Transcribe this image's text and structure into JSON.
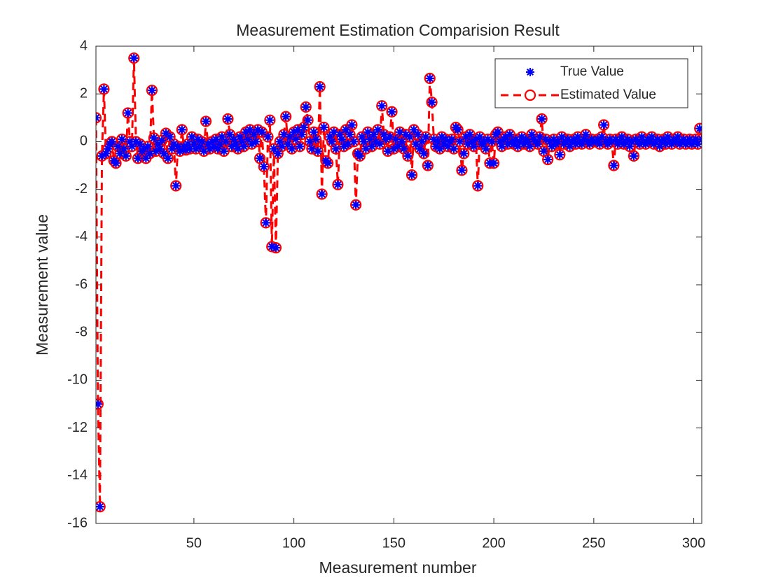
{
  "chart_data": {
    "type": "line",
    "title": "Measurement Estimation Comparision Result",
    "xlabel": "Measurement number",
    "ylabel": "Measurement value",
    "legend": "northeast",
    "xlim": [
      1,
      304
    ],
    "xticks": [
      50,
      100,
      150,
      200,
      250,
      300
    ],
    "ylim": [
      -16,
      4
    ],
    "yticks": [
      -16,
      -14,
      -12,
      -10,
      -8,
      -6,
      -4,
      -2,
      0,
      2,
      4
    ],
    "x": [
      1,
      2,
      3,
      4,
      5,
      6,
      7,
      8,
      9,
      10,
      11,
      12,
      13,
      14,
      15,
      16,
      17,
      18,
      19,
      20,
      21,
      22,
      23,
      24,
      25,
      26,
      27,
      28,
      29,
      30,
      31,
      32,
      33,
      34,
      35,
      36,
      37,
      38,
      39,
      40,
      41,
      42,
      43,
      44,
      45,
      46,
      47,
      48,
      49,
      50,
      51,
      52,
      53,
      54,
      55,
      56,
      57,
      58,
      59,
      60,
      61,
      62,
      63,
      64,
      65,
      66,
      67,
      68,
      69,
      70,
      71,
      72,
      73,
      74,
      75,
      76,
      77,
      78,
      79,
      80,
      81,
      82,
      83,
      84,
      85,
      86,
      87,
      88,
      89,
      90,
      91,
      92,
      93,
      94,
      95,
      96,
      97,
      98,
      99,
      100,
      101,
      102,
      103,
      104,
      105,
      106,
      107,
      108,
      109,
      110,
      111,
      112,
      113,
      114,
      115,
      116,
      117,
      118,
      119,
      120,
      121,
      122,
      123,
      124,
      125,
      126,
      127,
      128,
      129,
      130,
      131,
      132,
      133,
      134,
      135,
      136,
      137,
      138,
      139,
      140,
      141,
      142,
      143,
      144,
      145,
      146,
      147,
      148,
      149,
      150,
      151,
      152,
      153,
      154,
      155,
      156,
      157,
      158,
      159,
      160,
      161,
      162,
      163,
      164,
      165,
      166,
      167,
      168,
      169,
      170,
      171,
      172,
      173,
      174,
      175,
      176,
      177,
      178,
      179,
      180,
      181,
      182,
      183,
      184,
      185,
      186,
      187,
      188,
      189,
      190,
      191,
      192,
      193,
      194,
      195,
      196,
      197,
      198,
      199,
      200,
      201,
      202,
      203,
      204,
      205,
      206,
      207,
      208,
      209,
      210,
      211,
      212,
      213,
      214,
      215,
      216,
      217,
      218,
      219,
      220,
      221,
      222,
      223,
      224,
      225,
      226,
      227,
      228,
      229,
      230,
      231,
      232,
      233,
      234,
      235,
      236,
      237,
      238,
      239,
      240,
      241,
      242,
      243,
      244,
      245,
      246,
      247,
      248,
      249,
      250,
      251,
      252,
      253,
      254,
      255,
      256,
      257,
      258,
      259,
      260,
      261,
      262,
      263,
      264,
      265,
      266,
      267,
      268,
      269,
      270,
      271,
      272,
      273,
      274,
      275,
      276,
      277,
      278,
      279,
      280,
      281,
      282,
      283,
      284,
      285,
      286,
      287,
      288,
      289,
      290,
      291,
      292,
      293,
      294,
      295,
      296,
      297,
      298,
      299,
      300,
      301,
      302,
      303,
      304
    ],
    "series": [
      {
        "name": "True Value",
        "color": "#0000ff",
        "marker": "asterisk",
        "line": "none",
        "values": [
          1.0,
          -11.0,
          -15.3,
          -0.6,
          2.2,
          -0.5,
          -0.3,
          -0.1,
          0.0,
          -0.8,
          -0.9,
          -0.2,
          -0.5,
          0.1,
          -0.3,
          -0.6,
          1.2,
          0.0,
          -0.2,
          3.5,
          0.0,
          -0.7,
          -0.1,
          -0.4,
          -0.3,
          -0.7,
          -0.2,
          -0.5,
          2.15,
          0.15,
          -0.4,
          -0.1,
          -0.3,
          0.05,
          -0.5,
          0.35,
          -0.7,
          0.2,
          -0.3,
          -0.1,
          -1.85,
          -0.2,
          -0.4,
          0.5,
          -0.2,
          -0.35,
          -0.1,
          -0.3,
          0.2,
          -0.1,
          -0.3,
          0.1,
          -0.2,
          0.0,
          -0.4,
          0.85,
          -0.1,
          -0.3,
          0.0,
          -0.2,
          0.1,
          -0.3,
          -0.1,
          0.2,
          -0.4,
          0.0,
          0.95,
          0.3,
          -0.2,
          0.1,
          -0.1,
          -0.3,
          0.2,
          0.0,
          -0.2,
          0.4,
          0.1,
          0.5,
          -0.1,
          0.3,
          0.0,
          0.5,
          -0.7,
          0.4,
          -1.05,
          -3.4,
          0.2,
          0.9,
          -4.4,
          -0.3,
          -4.45,
          -0.5,
          0.0,
          -0.2,
          0.3,
          1.05,
          -0.1,
          0.2,
          -0.3,
          0.4,
          0.1,
          0.5,
          -0.2,
          0.3,
          0.6,
          1.45,
          0.9,
          0.0,
          -0.3,
          0.4,
          0.1,
          -0.4,
          2.3,
          -2.2,
          0.6,
          -0.8,
          -0.9,
          0.2,
          0.0,
          0.4,
          -0.3,
          -1.8,
          0.3,
          0.1,
          -0.2,
          0.5,
          -0.1,
          0.3,
          0.7,
          0.0,
          -2.65,
          -0.5,
          -0.6,
          0.2,
          0.0,
          -0.3,
          0.4,
          0.1,
          -0.2,
          0.3,
          0.0,
          0.5,
          -0.1,
          1.5,
          0.3,
          0.1,
          -0.4,
          0.2,
          1.25,
          -0.3,
          0.1,
          -0.2,
          0.4,
          0.0,
          -0.3,
          0.3,
          -0.6,
          0.2,
          -1.4,
          0.5,
          -0.1,
          0.3,
          -0.3,
          0.0,
          -0.5,
          0.2,
          -1.0,
          2.65,
          1.65,
          0.1,
          -0.2,
          0.0,
          -0.3,
          0.2,
          -0.1,
          0.1,
          -0.2,
          0.0,
          0.1,
          -0.3,
          0.6,
          0.5,
          0.0,
          -1.2,
          -0.5,
          0.2,
          -0.1,
          0.3,
          0.0,
          -0.2,
          0.1,
          -1.85,
          0.2,
          -0.1,
          0.0,
          -0.3,
          0.1,
          -0.9,
          0.0,
          -0.9,
          0.3,
          0.4,
          0.0,
          -0.2,
          0.1,
          0.2,
          -0.1,
          0.3,
          0.0,
          -0.1,
          0.1,
          -0.2,
          0.0,
          0.2,
          -0.1,
          0.1,
          0.0,
          -0.2,
          0.3,
          0.1,
          0.0,
          -0.1,
          0.2,
          0.95,
          -0.4,
          0.1,
          -0.75,
          0.0,
          -0.2,
          0.1,
          -0.1,
          0.0,
          -0.55,
          0.2,
          -0.1,
          0.0,
          0.1,
          -0.2,
          0.0,
          0.1,
          -0.1,
          0.2,
          0.0,
          -0.1,
          0.1,
          0.3,
          0.0,
          -0.1,
          0.1,
          0.0,
          0.0,
          0.1,
          -0.1,
          0.2,
          0.7,
          0.0,
          -0.1,
          0.1,
          0.0,
          -1.0,
          0.1,
          -0.1,
          0.0,
          0.2,
          -0.1,
          0.0,
          0.1,
          -0.2,
          0.0,
          -0.6,
          0.1,
          0.0,
          -0.1,
          0.2,
          0.0,
          -0.1,
          0.1,
          0.0,
          0.2,
          -0.1,
          0.0,
          0.1,
          -0.2,
          0.0,
          0.1,
          -0.1,
          0.2,
          0.0,
          -0.1,
          0.1,
          0.0,
          0.2,
          -0.1,
          0.0,
          0.1,
          -0.1,
          0.0,
          0.1,
          -0.1,
          0.0,
          0.1,
          -0.1,
          0.55,
          0.1
        ]
      },
      {
        "name": "Estimated Value",
        "color": "#ff0000",
        "marker": "circle",
        "line": "dashed",
        "values": [
          1.0,
          -11.0,
          -15.3,
          -0.6,
          2.2,
          -0.5,
          -0.3,
          -0.1,
          0.0,
          -0.8,
          -0.9,
          -0.2,
          -0.5,
          0.1,
          -0.3,
          -0.6,
          1.2,
          0.0,
          -0.2,
          3.5,
          0.0,
          -0.7,
          -0.1,
          -0.4,
          -0.3,
          -0.7,
          -0.2,
          -0.5,
          2.15,
          0.15,
          -0.4,
          -0.1,
          -0.3,
          0.05,
          -0.5,
          0.35,
          -0.7,
          0.2,
          -0.3,
          -0.1,
          -1.85,
          -0.2,
          -0.4,
          0.5,
          -0.2,
          -0.35,
          -0.1,
          -0.3,
          0.2,
          -0.1,
          -0.3,
          0.1,
          -0.2,
          0.0,
          -0.4,
          0.85,
          -0.1,
          -0.3,
          0.0,
          -0.2,
          0.1,
          -0.3,
          -0.1,
          0.2,
          -0.4,
          0.0,
          0.95,
          0.3,
          -0.2,
          0.1,
          -0.1,
          -0.3,
          0.2,
          0.0,
          -0.2,
          0.4,
          0.1,
          0.5,
          -0.1,
          0.3,
          0.0,
          0.5,
          -0.7,
          0.4,
          -1.05,
          -3.4,
          0.2,
          0.9,
          -4.4,
          -0.3,
          -4.45,
          -0.5,
          0.0,
          -0.2,
          0.3,
          1.05,
          -0.1,
          0.2,
          -0.3,
          0.4,
          0.1,
          0.5,
          -0.2,
          0.3,
          0.6,
          1.45,
          0.9,
          0.0,
          -0.3,
          0.4,
          0.1,
          -0.4,
          2.3,
          -2.2,
          0.6,
          -0.8,
          -0.9,
          0.2,
          0.0,
          0.4,
          -0.3,
          -1.8,
          0.3,
          0.1,
          -0.2,
          0.5,
          -0.1,
          0.3,
          0.7,
          0.0,
          -2.65,
          -0.5,
          -0.6,
          0.2,
          0.0,
          -0.3,
          0.4,
          0.1,
          -0.2,
          0.3,
          0.0,
          0.5,
          -0.1,
          1.5,
          0.3,
          0.1,
          -0.4,
          0.2,
          1.25,
          -0.3,
          0.1,
          -0.2,
          0.4,
          0.0,
          -0.3,
          0.3,
          -0.6,
          0.2,
          -1.4,
          0.5,
          -0.1,
          0.3,
          -0.3,
          0.0,
          -0.5,
          0.2,
          -1.0,
          2.65,
          1.65,
          0.1,
          -0.2,
          0.0,
          -0.3,
          0.2,
          -0.1,
          0.1,
          -0.2,
          0.0,
          0.1,
          -0.3,
          0.6,
          0.5,
          0.0,
          -1.2,
          -0.5,
          0.2,
          -0.1,
          0.3,
          0.0,
          -0.2,
          0.1,
          -1.85,
          0.2,
          -0.1,
          0.0,
          -0.3,
          0.1,
          -0.9,
          0.0,
          -0.9,
          0.3,
          0.4,
          0.0,
          -0.2,
          0.1,
          0.2,
          -0.1,
          0.3,
          0.0,
          -0.1,
          0.1,
          -0.2,
          0.0,
          0.2,
          -0.1,
          0.1,
          0.0,
          -0.2,
          0.3,
          0.1,
          0.0,
          -0.1,
          0.2,
          0.95,
          -0.4,
          0.1,
          -0.75,
          0.0,
          -0.2,
          0.1,
          -0.1,
          0.0,
          -0.55,
          0.2,
          -0.1,
          0.0,
          0.1,
          -0.2,
          0.0,
          0.1,
          -0.1,
          0.2,
          0.0,
          -0.1,
          0.1,
          0.3,
          0.0,
          -0.1,
          0.1,
          0.0,
          0.0,
          0.1,
          -0.1,
          0.2,
          0.7,
          0.0,
          -0.1,
          0.1,
          0.0,
          -1.0,
          0.1,
          -0.1,
          0.0,
          0.2,
          -0.1,
          0.0,
          0.1,
          -0.2,
          0.0,
          -0.6,
          0.1,
          0.0,
          -0.1,
          0.2,
          0.0,
          -0.1,
          0.1,
          0.0,
          0.2,
          -0.1,
          0.0,
          0.1,
          -0.2,
          0.0,
          0.1,
          -0.1,
          0.2,
          0.0,
          -0.1,
          0.1,
          0.0,
          0.2,
          -0.1,
          0.0,
          0.1,
          -0.1,
          0.0,
          0.1,
          -0.1,
          0.0,
          0.1,
          -0.1,
          0.55,
          0.1
        ]
      }
    ]
  }
}
